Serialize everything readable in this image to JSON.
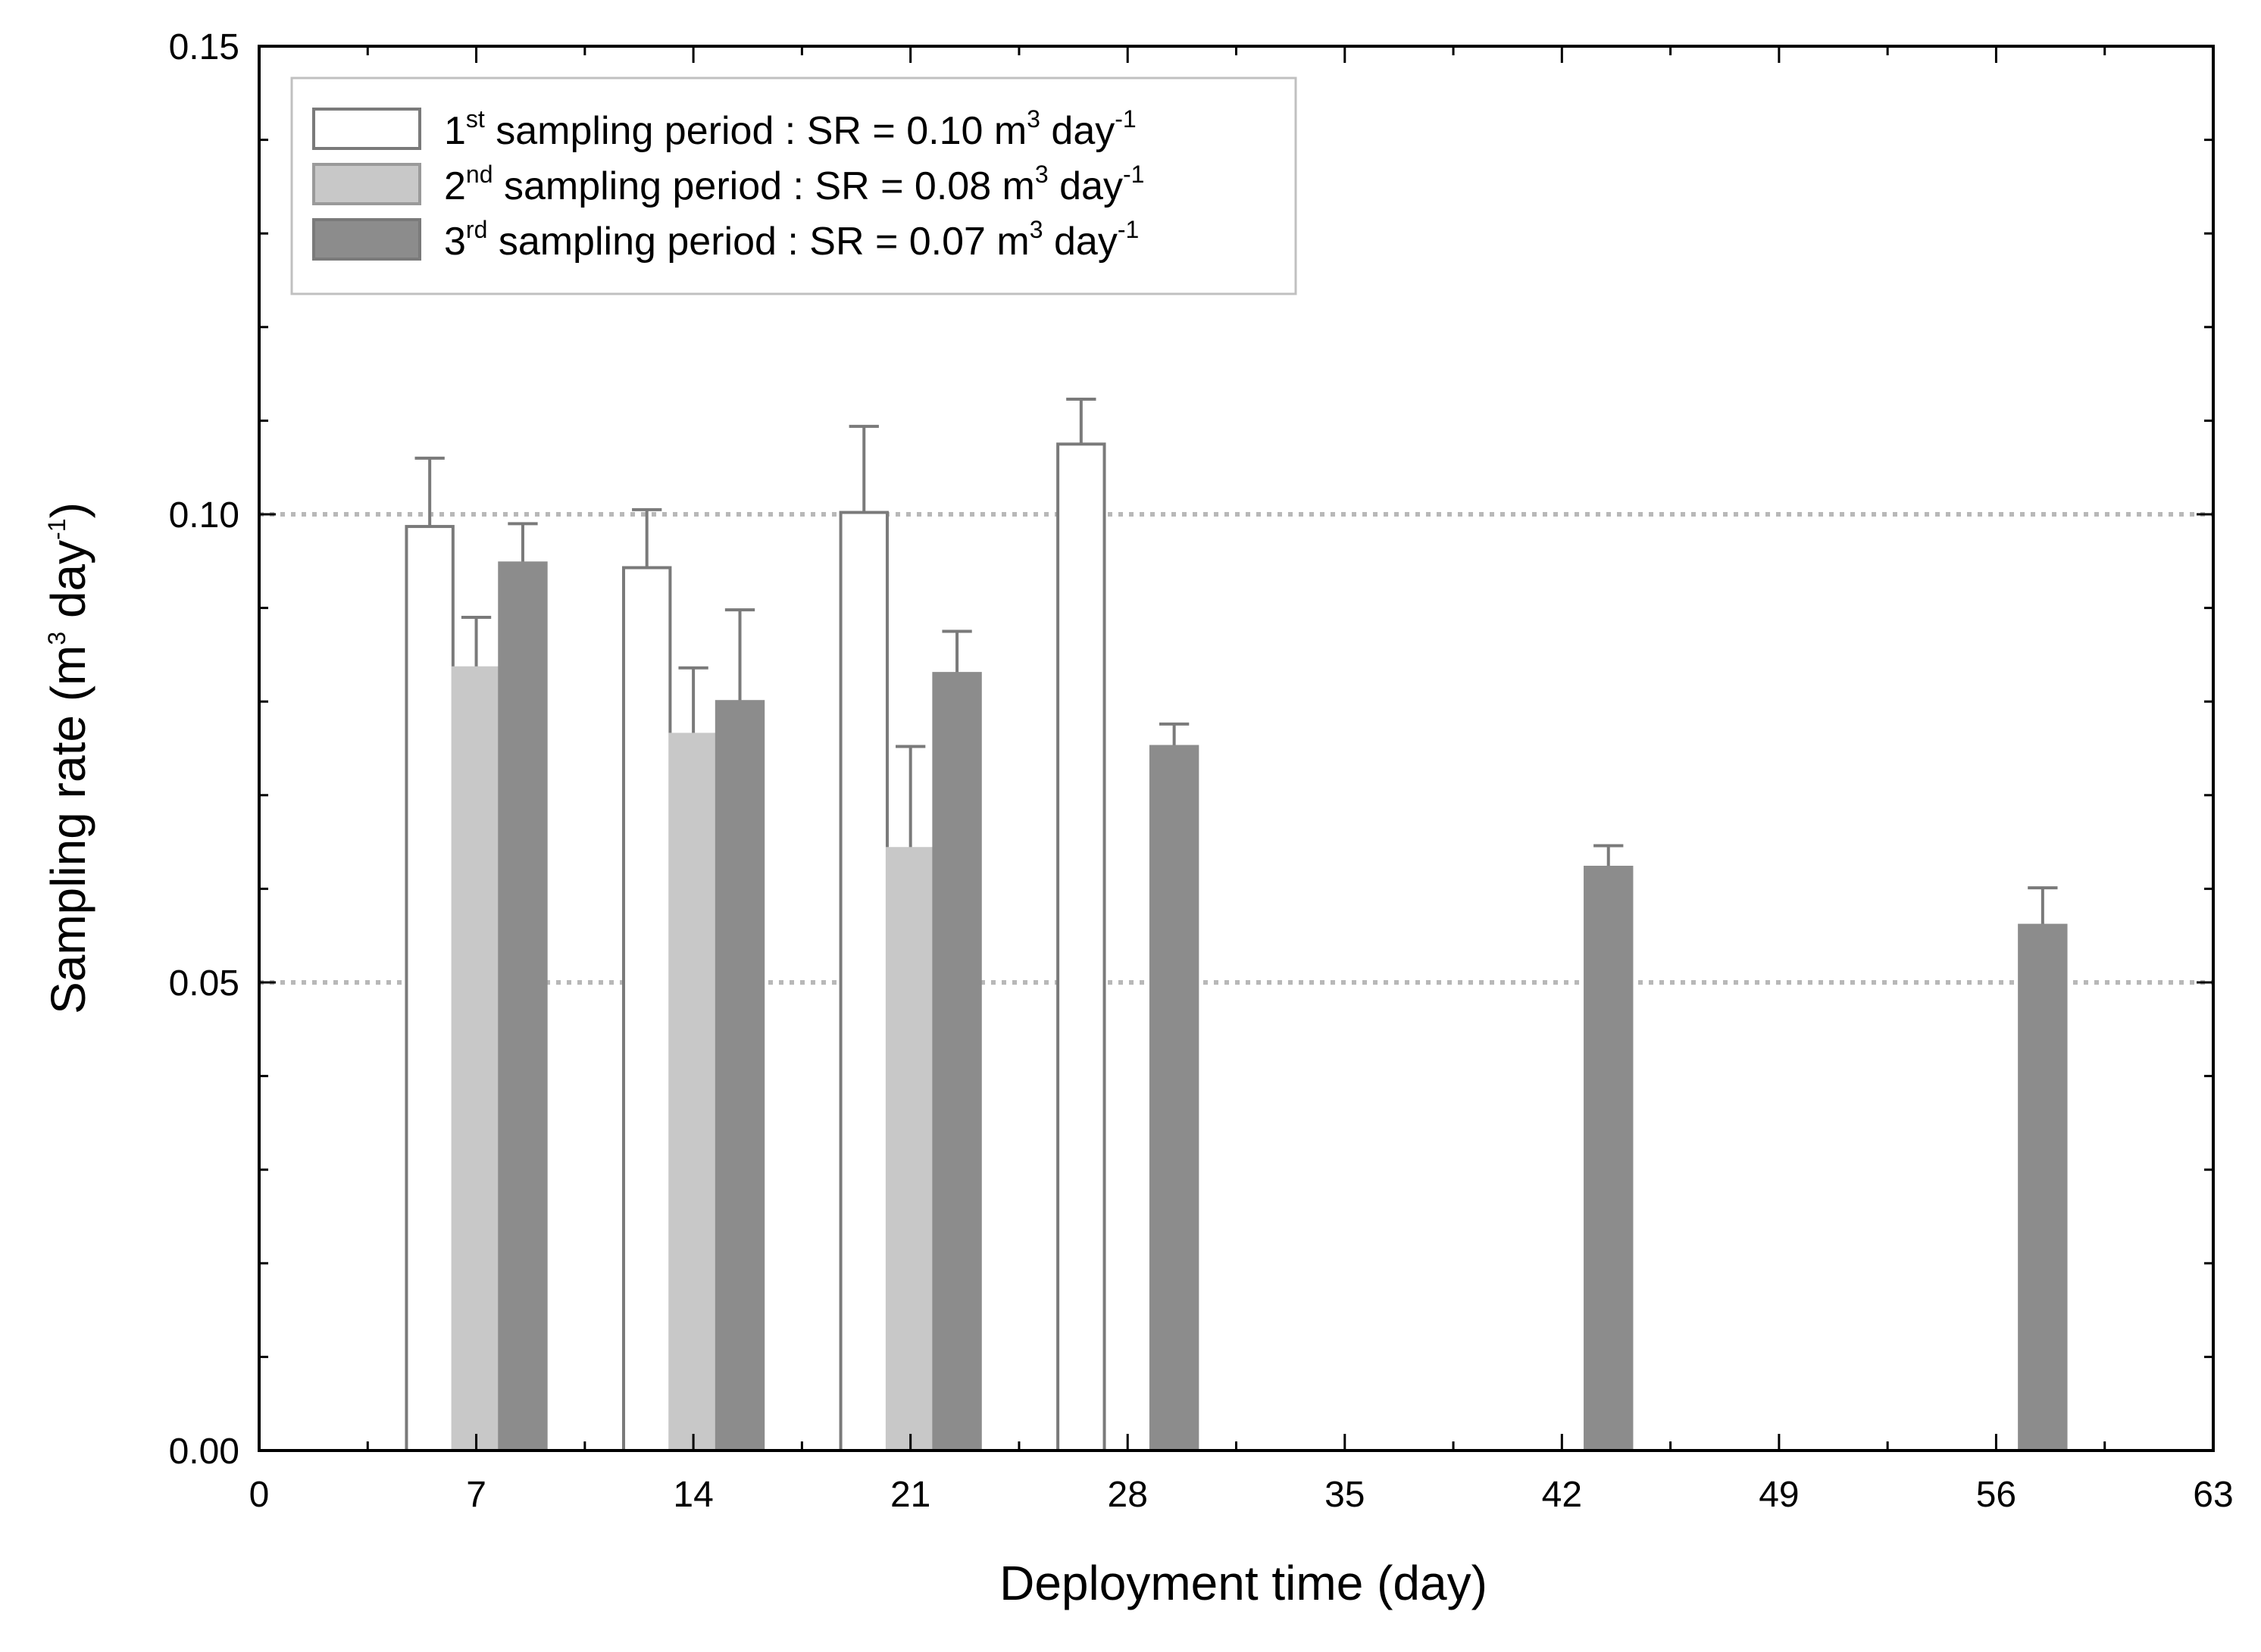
{
  "chart_data": {
    "type": "bar",
    "xlabel": "Deployment time (day)",
    "ylabel": "Sampling rate (m",
    "ylabel_sup1": "3",
    "ylabel_mid": " day",
    "ylabel_sup2": "-1",
    "ylabel_end": ")",
    "xlim": [
      0,
      63
    ],
    "ylim": [
      0,
      0.15
    ],
    "x_ticks": [
      0,
      7,
      14,
      21,
      28,
      35,
      42,
      49,
      56,
      63
    ],
    "x_tick_labels": [
      "0",
      "7",
      "14",
      "21",
      "28",
      "35",
      "42",
      "49",
      "56",
      "63"
    ],
    "y_ticks": [
      0,
      0.05,
      0.1,
      0.15
    ],
    "y_tick_labels": [
      "0.00",
      "0.05",
      "0.10",
      "0.15"
    ],
    "y_minor_step": 0.01,
    "x_minor_step": 3.5,
    "reference_lines": [
      0.1,
      0.05
    ],
    "bar_width_days": 1.5,
    "series": [
      {
        "name": "1st sampling period",
        "fill": "#ffffff",
        "stroke": "#7a7a7a",
        "points": [
          {
            "x": 5.5,
            "y": 0.0987,
            "err": 0.0073
          },
          {
            "x": 12.5,
            "y": 0.0943,
            "err": 0.0062
          },
          {
            "x": 19.5,
            "y": 0.1002,
            "err": 0.0092
          },
          {
            "x": 26.5,
            "y": 0.1075,
            "err": 0.0048
          }
        ]
      },
      {
        "name": "2nd sampling period",
        "fill": "#c8c8c8",
        "stroke": "#c8c8c8",
        "points": [
          {
            "x": 7.0,
            "y": 0.0836,
            "err": 0.0054
          },
          {
            "x": 14.0,
            "y": 0.0765,
            "err": 0.0071
          },
          {
            "x": 21.0,
            "y": 0.0643,
            "err": 0.0109
          }
        ]
      },
      {
        "name": "3rd sampling period",
        "fill": "#8c8c8c",
        "stroke": "#8c8c8c",
        "points": [
          {
            "x": 8.5,
            "y": 0.0948,
            "err": 0.0042
          },
          {
            "x": 15.5,
            "y": 0.08,
            "err": 0.0098
          },
          {
            "x": 22.5,
            "y": 0.083,
            "err": 0.0045
          },
          {
            "x": 29.5,
            "y": 0.0752,
            "err": 0.0024
          },
          {
            "x": 43.5,
            "y": 0.0623,
            "err": 0.0023
          },
          {
            "x": 57.5,
            "y": 0.0561,
            "err": 0.004
          }
        ]
      }
    ],
    "legend": {
      "position": "top-left",
      "entries": [
        {
          "pre": "1",
          "sup": "st",
          "text": " sampling period : SR = 0.10 m",
          "sup2": "3",
          "text2": " day",
          "sup3": "-1",
          "fill": "#ffffff",
          "stroke": "#7a7a7a"
        },
        {
          "pre": "2",
          "sup": "nd",
          "text": " sampling period : SR = 0.08 m",
          "sup2": "3",
          "text2": " day",
          "sup3": "-1",
          "fill": "#c8c8c8",
          "stroke": "#9a9a9a"
        },
        {
          "pre": "3",
          "sup": "rd",
          "text": " sampling period : SR = 0.07 m",
          "sup2": "3",
          "text2": " day",
          "sup3": "-1",
          "fill": "#8c8c8c",
          "stroke": "#7a7a7a"
        }
      ]
    }
  }
}
